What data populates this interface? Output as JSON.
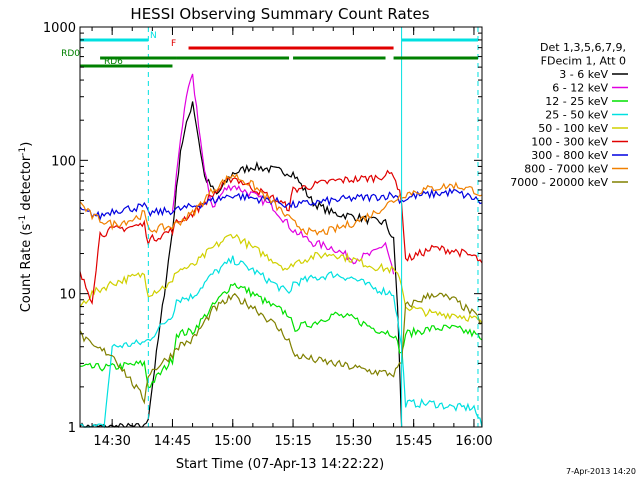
{
  "chart_data": {
    "type": "line",
    "title": "HESSI Observing Summary Count Rates",
    "xlabel": "Start Time (07-Apr-13 14:22:22)",
    "ylabel_main": "Count Rate (s",
    "ylabel_sup1": "-1",
    "ylabel_mid": " detector",
    "ylabel_sup2": "-1",
    "ylabel_end": ")",
    "yscale": "log",
    "ylim": [
      1,
      1000
    ],
    "xlim": [
      "14:22",
      "16:02"
    ],
    "x_ticks": [
      "14:30",
      "14:45",
      "15:00",
      "15:15",
      "15:30",
      "15:45",
      "16:00"
    ],
    "y_ticks": [
      "1",
      "10",
      "100",
      "1000"
    ],
    "timestamp": "7-Apr-2013 14:20",
    "legend": {
      "header": [
        "Det 1,3,5,6,7,9,",
        "FDecim 1, Att 0"
      ],
      "placement": "right",
      "items": [
        {
          "label": "3 - 6 keV",
          "color": "#000000"
        },
        {
          "label": "6 - 12 keV",
          "color": "#e000e0"
        },
        {
          "label": "12 - 25 keV",
          "color": "#00e000"
        },
        {
          "label": "25 - 50 keV",
          "color": "#00e0e0"
        },
        {
          "label": "50 - 100 keV",
          "color": "#d0d000"
        },
        {
          "label": "100 - 300 keV",
          "color": "#e00000"
        },
        {
          "label": "300 - 800 keV",
          "color": "#0000e0"
        },
        {
          "label": "800 - 7000 keV",
          "color": "#f08000"
        },
        {
          "label": "7000 - 20000 keV",
          "color": "#808000"
        }
      ]
    },
    "flags": [
      {
        "label": "N",
        "color": "#00e0e0",
        "segments": [
          [
            "14:22",
            "14:39"
          ],
          [
            "15:42",
            "16:01"
          ]
        ]
      },
      {
        "label": "F",
        "color": "#e00000",
        "segments": [
          [
            "14:49",
            "15:40"
          ]
        ]
      },
      {
        "label": "RD0",
        "color": "#008000",
        "segments": [
          [
            "14:27",
            "14:46"
          ],
          [
            "14:46",
            "15:14"
          ],
          [
            "15:15",
            "15:38"
          ],
          [
            "15:40",
            "16:01"
          ]
        ]
      },
      {
        "label": "RD6",
        "color": "#008000",
        "segments": [
          [
            "14:22",
            "14:45"
          ]
        ]
      }
    ],
    "vlines": [
      {
        "time": "14:39",
        "color": "#00e0e0",
        "style": "dashed"
      },
      {
        "time": "15:42",
        "color": "#00e0e0",
        "style": "solid"
      },
      {
        "time": "16:01",
        "color": "#00e0e0",
        "style": "dashed"
      }
    ],
    "series": [
      {
        "name": "3 - 6 keV",
        "color": "#000000",
        "x": [
          "14:22",
          "14:30",
          "14:38",
          "14:39",
          "14:45",
          "14:47",
          "14:50",
          "14:53",
          "14:56",
          "15:00",
          "15:05",
          "15:10",
          "15:15",
          "15:20",
          "15:25",
          "15:30",
          "15:35",
          "15:38",
          "15:40",
          "15:41",
          "15:42"
        ],
        "y": [
          1.0,
          1.0,
          1.0,
          1.2,
          30,
          120,
          280,
          75,
          55,
          80,
          90,
          85,
          80,
          48,
          40,
          38,
          35,
          34,
          25,
          8,
          1.0
        ]
      },
      {
        "name": "6 - 12 keV",
        "color": "#e000e0",
        "x": [
          "14:45",
          "14:47",
          "14:49",
          "14:50",
          "14:51",
          "14:53",
          "14:55",
          "14:58",
          "15:00",
          "15:05",
          "15:10",
          "15:15",
          "15:20",
          "15:25",
          "15:30",
          "15:35",
          "15:38",
          "15:40"
        ],
        "y": [
          40,
          150,
          350,
          420,
          250,
          80,
          45,
          60,
          65,
          55,
          45,
          30,
          24,
          22,
          18,
          20,
          24,
          14
        ]
      },
      {
        "name": "12 - 25 keV",
        "color": "#00e000",
        "x": [
          "14:22",
          "14:30",
          "14:38",
          "14:39",
          "14:45",
          "14:46",
          "14:50",
          "14:55",
          "15:00",
          "15:05",
          "15:10",
          "15:14",
          "15:15",
          "15:20",
          "15:25",
          "15:30",
          "15:35",
          "15:40",
          "15:42",
          "15:43",
          "15:50",
          "15:55",
          "16:00",
          "16:02"
        ],
        "y": [
          2.8,
          2.8,
          3.0,
          2.0,
          3.2,
          5.0,
          5.2,
          8.0,
          12,
          10,
          8.0,
          7.0,
          5.5,
          6.0,
          7.0,
          6.5,
          5.5,
          5.0,
          3.5,
          5.0,
          5.5,
          5.5,
          5.0,
          4.5
        ]
      },
      {
        "name": "25 - 50 keV",
        "color": "#00e0e0",
        "x": [
          "14:22",
          "14:28",
          "14:30",
          "14:38",
          "14:39",
          "14:45",
          "14:46",
          "14:50",
          "14:55",
          "15:00",
          "15:05",
          "15:10",
          "15:14",
          "15:15",
          "15:20",
          "15:25",
          "15:30",
          "15:35",
          "15:40",
          "15:42",
          "15:43",
          "15:50",
          "15:55",
          "16:00",
          "16:02"
        ],
        "y": [
          1.0,
          1.0,
          4.0,
          4.3,
          4.5,
          7.0,
          9.0,
          9.5,
          14,
          18,
          15,
          12,
          10,
          12,
          13,
          14,
          13,
          11,
          10,
          4.0,
          1.5,
          1.5,
          1.4,
          1.4,
          1.0
        ]
      },
      {
        "name": "50 - 100 keV",
        "color": "#d0d000",
        "x": [
          "14:22",
          "14:25",
          "14:30",
          "14:38",
          "14:39",
          "14:45",
          "14:46",
          "14:50",
          "14:55",
          "15:00",
          "15:05",
          "15:10",
          "15:14",
          "15:15",
          "15:20",
          "15:25",
          "15:30",
          "15:35",
          "15:40",
          "15:42",
          "15:43",
          "15:50",
          "15:55",
          "16:00",
          "16:02"
        ],
        "y": [
          8,
          10,
          12,
          14,
          10,
          12,
          15,
          16,
          22,
          28,
          22,
          18,
          15,
          17,
          19,
          20,
          18,
          16,
          15,
          12,
          8,
          7,
          7,
          6.5,
          6
        ]
      },
      {
        "name": "100 - 300 keV",
        "color": "#e00000",
        "x": [
          "14:22",
          "14:25",
          "14:27",
          "14:30",
          "14:38",
          "14:39",
          "14:45",
          "14:46",
          "14:50",
          "14:55",
          "15:00",
          "15:05",
          "15:10",
          "15:14",
          "15:15",
          "15:20",
          "15:25",
          "15:30",
          "15:35",
          "15:40",
          "15:42",
          "15:43",
          "15:50",
          "15:55",
          "16:00",
          "16:02"
        ],
        "y": [
          14,
          9,
          28,
          30,
          33,
          25,
          30,
          34,
          40,
          55,
          75,
          62,
          52,
          44,
          60,
          65,
          70,
          72,
          74,
          80,
          50,
          18,
          22,
          21,
          19,
          17
        ]
      },
      {
        "name": "300 - 800 keV",
        "color": "#0000e0",
        "x": [
          "14:22",
          "14:27",
          "14:30",
          "14:38",
          "14:39",
          "14:45",
          "14:50",
          "14:55",
          "15:00",
          "15:05",
          "15:10",
          "15:14",
          "15:15",
          "15:20",
          "15:25",
          "15:30",
          "15:35",
          "15:40",
          "15:42",
          "15:45",
          "15:50",
          "15:55",
          "16:00",
          "16:02"
        ],
        "y": [
          42,
          38,
          42,
          45,
          40,
          42,
          45,
          50,
          55,
          52,
          50,
          46,
          46,
          48,
          50,
          52,
          53,
          55,
          50,
          54,
          56,
          58,
          52,
          48
        ]
      },
      {
        "name": "800 - 7000 keV",
        "color": "#f08000",
        "x": [
          "14:22",
          "14:25",
          "14:30",
          "14:35",
          "14:38",
          "14:39",
          "14:45",
          "14:50",
          "14:55",
          "15:00",
          "15:05",
          "15:10",
          "15:15",
          "15:20",
          "15:25",
          "15:30",
          "15:35",
          "15:40",
          "15:42",
          "15:45",
          "15:50",
          "15:55",
          "16:00",
          "16:02"
        ],
        "y": [
          48,
          38,
          33,
          36,
          40,
          30,
          32,
          40,
          60,
          78,
          65,
          48,
          34,
          28,
          30,
          34,
          40,
          50,
          55,
          58,
          62,
          65,
          60,
          55
        ]
      },
      {
        "name": "7000 - 20000 keV",
        "color": "#808000",
        "x": [
          "14:22",
          "14:25",
          "14:30",
          "14:38",
          "14:39",
          "14:45",
          "14:46",
          "14:50",
          "14:55",
          "15:00",
          "15:05",
          "15:10",
          "15:14",
          "15:15",
          "15:20",
          "15:25",
          "15:30",
          "15:35",
          "15:40",
          "15:42",
          "15:43",
          "15:50",
          "15:55",
          "16:00",
          "16:02"
        ],
        "y": [
          5,
          4,
          3.5,
          1.6,
          2.5,
          3.5,
          4.0,
          4.5,
          7.5,
          9.5,
          8,
          6,
          4.5,
          3.5,
          3.2,
          3.0,
          2.8,
          2.6,
          2.5,
          3.0,
          8,
          10,
          9,
          7,
          6
        ]
      }
    ]
  }
}
